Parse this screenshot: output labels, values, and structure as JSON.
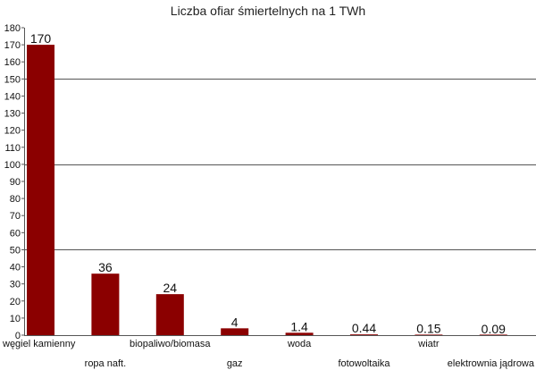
{
  "chart_data": {
    "type": "bar",
    "title": "Liczba ofiar śmiertelnych na 1 TWh",
    "categories": [
      "węgiel kamienny",
      "ropa naft.",
      "biopaliwo/biomasa",
      "gaz",
      "woda",
      "fotowoltaika",
      "wiatr",
      "elektrownia jądrowa"
    ],
    "values": [
      170,
      36,
      24,
      4,
      1.4,
      0.44,
      0.15,
      0.09
    ],
    "data_labels": [
      "170",
      "36",
      "24",
      "4",
      "1.4",
      "0.44",
      "0.15",
      "0.09"
    ],
    "ylim": [
      0,
      180
    ],
    "y_ticks": [
      "0",
      "10",
      "20",
      "30",
      "40",
      "50",
      "60",
      "70",
      "80",
      "90",
      "100",
      "110",
      "120",
      "130",
      "140",
      "150",
      "160",
      "170",
      "180"
    ],
    "gridlines_at": [
      50,
      100,
      150
    ],
    "grid": "horizontal at 50, 100, 150",
    "legend": "none",
    "colors": {
      "bar": "#8b0000",
      "axis": "#555555",
      "grid": "#555555",
      "text": "#111111"
    }
  }
}
